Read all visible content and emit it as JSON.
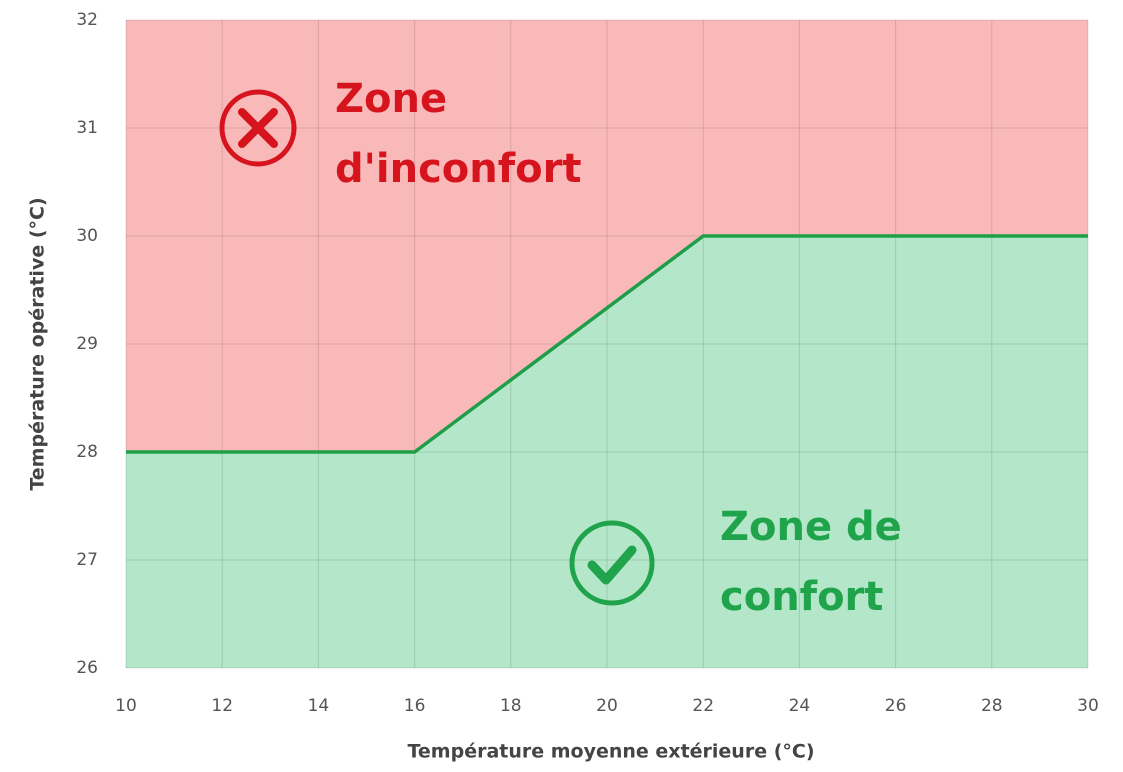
{
  "chart_data": {
    "type": "line",
    "x_label": "Température moyenne extérieure (°C)",
    "y_label": "Température opérative (°C)",
    "x": [
      10,
      16,
      22,
      30
    ],
    "series": [
      {
        "color": "#1f9e48",
        "values": [
          28,
          28,
          30,
          30
        ]
      }
    ],
    "fill_above": "#f9b9b9",
    "fill_below": "#b4e6c9",
    "xlim": [
      10,
      30
    ],
    "xticks": [
      10,
      12,
      14,
      16,
      18,
      20,
      22,
      24,
      26,
      28,
      30
    ],
    "ylim": [
      26,
      32
    ],
    "yticks": [
      26,
      27,
      28,
      29,
      30,
      31,
      32
    ],
    "grid": true,
    "annotations": [
      {
        "lines": [
          "Zone",
          "d'inconfort"
        ],
        "color": "#d6141e"
      },
      {
        "lines": [
          "Zone de",
          "confort"
        ],
        "color": "#1fa34b"
      }
    ]
  }
}
